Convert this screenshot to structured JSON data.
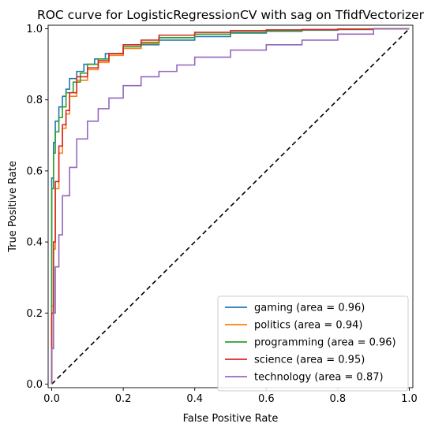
{
  "chart_data": {
    "type": "line",
    "title": "ROC curve for LogisticRegressionCV with sag on TfidfVectorizer",
    "xlabel": "False Positive Rate",
    "ylabel": "True Positive Rate",
    "xlim": [
      -0.01,
      1.01
    ],
    "ylim": [
      -0.01,
      1.01
    ],
    "grid": false,
    "legend_position": "lower-right",
    "xticks": [
      {
        "value": 0.0,
        "label": "0.0"
      },
      {
        "value": 0.2,
        "label": "0.2"
      },
      {
        "value": 0.4,
        "label": "0.4"
      },
      {
        "value": 0.6,
        "label": "0.6"
      },
      {
        "value": 0.8,
        "label": "0.8"
      },
      {
        "value": 1.0,
        "label": "1.0"
      }
    ],
    "yticks": [
      {
        "value": 0.0,
        "label": "0.0"
      },
      {
        "value": 0.2,
        "label": "0.2"
      },
      {
        "value": 0.4,
        "label": "0.4"
      },
      {
        "value": 0.6,
        "label": "0.6"
      },
      {
        "value": 0.8,
        "label": "0.8"
      },
      {
        "value": 1.0,
        "label": "1.0"
      }
    ],
    "diagonal": {
      "x": [
        0,
        1
      ],
      "y": [
        0,
        1
      ],
      "color": "#000000",
      "style": "dashed"
    },
    "series": [
      {
        "name": "gaming (area = 0.96)",
        "color": "#1f77b4",
        "x": [
          0.0,
          0.0,
          0.005,
          0.01,
          0.02,
          0.03,
          0.04,
          0.05,
          0.07,
          0.09,
          0.12,
          0.15,
          0.2,
          0.25,
          0.3,
          0.4,
          0.5,
          0.6,
          0.7,
          0.8,
          0.9,
          1.0
        ],
        "y": [
          0.0,
          0.3,
          0.58,
          0.68,
          0.74,
          0.78,
          0.81,
          0.83,
          0.86,
          0.88,
          0.9,
          0.915,
          0.93,
          0.945,
          0.955,
          0.968,
          0.978,
          0.988,
          0.993,
          0.996,
          0.998,
          1.0
        ]
      },
      {
        "name": "politics (area = 0.94)",
        "color": "#ff7f0e",
        "x": [
          0.0,
          0.005,
          0.01,
          0.02,
          0.03,
          0.04,
          0.05,
          0.07,
          0.1,
          0.13,
          0.16,
          0.2,
          0.25,
          0.3,
          0.4,
          0.5,
          0.6,
          0.7,
          0.8,
          0.9,
          1.0
        ],
        "y": [
          0.0,
          0.22,
          0.38,
          0.55,
          0.65,
          0.72,
          0.76,
          0.81,
          0.855,
          0.885,
          0.905,
          0.925,
          0.945,
          0.958,
          0.975,
          0.985,
          0.99,
          0.994,
          0.997,
          0.999,
          1.0
        ]
      },
      {
        "name": "programming (area = 0.96)",
        "color": "#2ca02c",
        "x": [
          0.0,
          0.0,
          0.005,
          0.01,
          0.02,
          0.03,
          0.04,
          0.06,
          0.08,
          0.1,
          0.13,
          0.16,
          0.2,
          0.25,
          0.3,
          0.4,
          0.5,
          0.6,
          0.7,
          0.8,
          0.9,
          1.0
        ],
        "y": [
          0.0,
          0.3,
          0.55,
          0.65,
          0.71,
          0.75,
          0.78,
          0.82,
          0.85,
          0.875,
          0.9,
          0.915,
          0.93,
          0.95,
          0.962,
          0.975,
          0.985,
          0.99,
          0.994,
          0.997,
          0.999,
          1.0
        ]
      },
      {
        "name": "science (area = 0.95)",
        "color": "#d62728",
        "x": [
          0.0,
          0.005,
          0.01,
          0.02,
          0.03,
          0.04,
          0.05,
          0.07,
          0.1,
          0.13,
          0.16,
          0.2,
          0.25,
          0.3,
          0.4,
          0.5,
          0.6,
          0.7,
          0.8,
          0.9,
          1.0
        ],
        "y": [
          0.0,
          0.2,
          0.4,
          0.57,
          0.67,
          0.73,
          0.77,
          0.82,
          0.865,
          0.89,
          0.91,
          0.93,
          0.955,
          0.968,
          0.982,
          0.99,
          0.995,
          0.997,
          0.998,
          0.999,
          1.0
        ]
      },
      {
        "name": "technology (area = 0.87)",
        "color": "#9467bd",
        "x": [
          0.0,
          0.005,
          0.01,
          0.02,
          0.03,
          0.05,
          0.07,
          0.1,
          0.13,
          0.16,
          0.2,
          0.25,
          0.3,
          0.35,
          0.4,
          0.5,
          0.6,
          0.7,
          0.8,
          0.9,
          1.0
        ],
        "y": [
          0.0,
          0.1,
          0.2,
          0.33,
          0.42,
          0.53,
          0.61,
          0.69,
          0.74,
          0.775,
          0.805,
          0.84,
          0.865,
          0.88,
          0.898,
          0.92,
          0.94,
          0.955,
          0.968,
          0.985,
          1.0
        ]
      }
    ]
  }
}
